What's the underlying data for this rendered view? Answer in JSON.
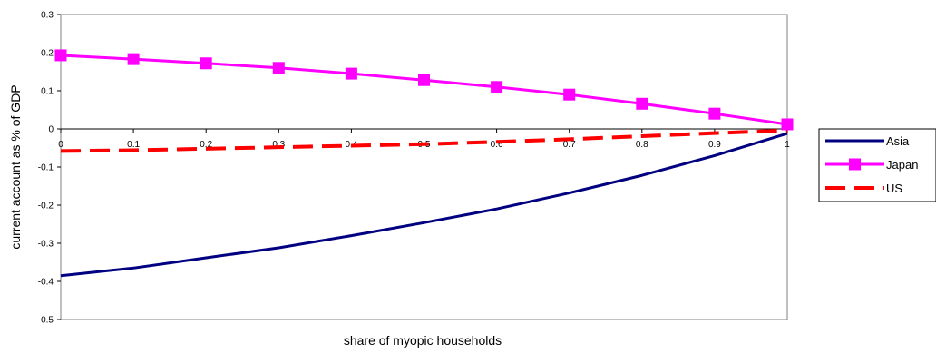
{
  "chart_data": {
    "type": "line",
    "title": "",
    "xlabel": "share of myopic households",
    "ylabel": "current account as % of GDP",
    "xlim": [
      0,
      1
    ],
    "ylim": [
      -0.5,
      0.3
    ],
    "x_ticks": [
      "0",
      "0.1",
      "0.2",
      "0.3",
      "0.4",
      "0.5",
      "0.6",
      "0.7",
      "0.8",
      "0.9",
      "1"
    ],
    "y_ticks": [
      "0.3",
      "0.2",
      "0.1",
      "0",
      "-0.1",
      "-0.2",
      "-0.3",
      "-0.4",
      "-0.5"
    ],
    "x": [
      0,
      0.1,
      0.2,
      0.3,
      0.4,
      0.5,
      0.6,
      0.7,
      0.8,
      0.9,
      1
    ],
    "grid": false,
    "legend_position": "right",
    "series": [
      {
        "name": "Asia",
        "color": "#000080",
        "style": "solid",
        "marker": "none",
        "values": [
          -0.385,
          -0.365,
          -0.338,
          -0.312,
          -0.28,
          -0.246,
          -0.21,
          -0.168,
          -0.122,
          -0.07,
          -0.012
        ]
      },
      {
        "name": "Japan",
        "color": "#ff00ff",
        "style": "solid",
        "marker": "square",
        "values": [
          0.193,
          0.183,
          0.172,
          0.16,
          0.145,
          0.128,
          0.11,
          0.09,
          0.066,
          0.04,
          0.012
        ]
      },
      {
        "name": "US",
        "color": "#ff0000",
        "style": "dashed",
        "marker": "none",
        "values": [
          -0.058,
          -0.056,
          -0.052,
          -0.048,
          -0.044,
          -0.04,
          -0.034,
          -0.027,
          -0.019,
          -0.011,
          -0.004
        ]
      }
    ]
  }
}
